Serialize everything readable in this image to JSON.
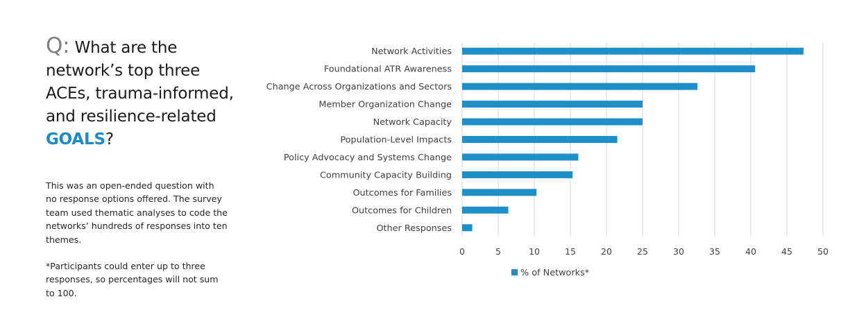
{
  "question": {
    "prefix": "Q:",
    "text": " What are the network’s top three ACEs, trauma-informed, and resilience-related ",
    "highlight": "GOALS",
    "suffix": "?"
  },
  "notes": [
    "This was an open-ended  question with\nno response options offered. The survey\nteam used thematic analyses to code the\nnetworks’ hundreds of responses into ten\nthemes.",
    "*Participants could enter up to three\nresponses, so percentages will not sum\nto 100."
  ],
  "colors": {
    "bar": "#1f8fc9",
    "grid": "#d9d9d9",
    "highlight": "#1a8bc6"
  },
  "chart_data": {
    "type": "bar",
    "orientation": "horizontal",
    "categories": [
      "Network Activities",
      "Foundational ATR Awareness",
      "Change Across Organizations and Sectors",
      "Member Organization Change",
      "Network Capacity",
      "Population-Level Impacts",
      "Policy Advocacy and Systems Change",
      "Community Capacity Building",
      "Outcomes for Families",
      "Outcomes for Children",
      "Other Responses"
    ],
    "series": [
      {
        "name": "% of Networks*",
        "values": [
          47.3,
          40.6,
          32.6,
          25.0,
          25.0,
          21.5,
          16.1,
          15.3,
          10.3,
          6.4,
          1.4
        ]
      }
    ],
    "xlim": [
      0,
      50
    ],
    "xticks": [
      "0",
      "5",
      "10",
      "15",
      "20",
      "25",
      "30",
      "35",
      "40",
      "45",
      "50"
    ],
    "grid": "vertical",
    "legend": "bottom"
  }
}
